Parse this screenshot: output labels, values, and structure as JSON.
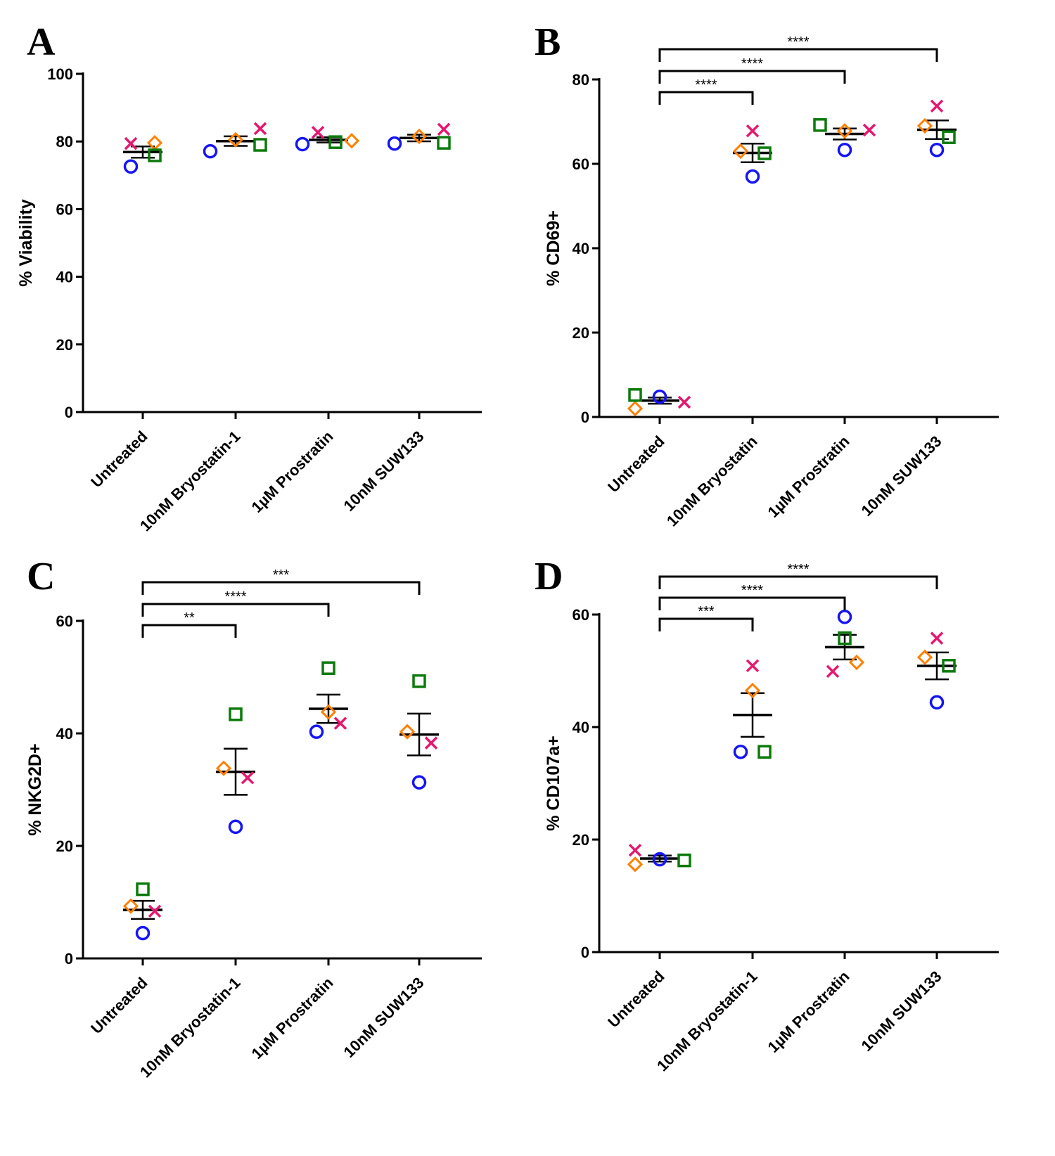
{
  "marker_colors": {
    "circle": "#1515f5",
    "x": "#e5176e",
    "diamond": "#ff8000",
    "square": "#0b7a0b"
  },
  "chart_data": [
    {
      "panel": "A",
      "type": "scatter",
      "ylabel": "% Viability",
      "ylim": [
        0,
        100
      ],
      "yticks": [
        0,
        20,
        40,
        60,
        80,
        100
      ],
      "categories": [
        "Untreated",
        "10nM Bryostatin-1",
        "1µM Prostratin",
        "10nM SUW133"
      ],
      "series": [
        {
          "marker": "circle",
          "values": [
            72.6,
            77.1,
            79.2,
            79.4
          ]
        },
        {
          "marker": "x",
          "values": [
            79.4,
            83.8,
            82.7,
            83.6
          ]
        },
        {
          "marker": "diamond",
          "values": [
            79.6,
            80.5,
            80.2,
            81.5
          ]
        },
        {
          "marker": "square",
          "values": [
            75.9,
            79.0,
            79.8,
            79.6
          ]
        }
      ],
      "summary": "mean ± SEM",
      "significance": []
    },
    {
      "panel": "B",
      "type": "scatter",
      "ylabel": "% CD69+",
      "ylim": [
        0,
        80
      ],
      "yticks": [
        0,
        20,
        40,
        60,
        80
      ],
      "categories": [
        "Untreated",
        "10nM Bryostatin",
        "1µM Prostratin",
        "10nM SUW133"
      ],
      "series": [
        {
          "marker": "circle",
          "values": [
            4.8,
            57.0,
            63.3,
            63.3
          ]
        },
        {
          "marker": "x",
          "values": [
            3.5,
            67.8,
            68.0,
            73.7
          ]
        },
        {
          "marker": "diamond",
          "values": [
            2.0,
            63.0,
            67.8,
            69.0
          ]
        },
        {
          "marker": "square",
          "values": [
            5.2,
            62.5,
            69.2,
            66.3
          ]
        }
      ],
      "summary": "mean ± SEM",
      "significance": [
        {
          "from": "Untreated",
          "to": "10nM Bryostatin",
          "stars": "****"
        },
        {
          "from": "Untreated",
          "to": "1µM Prostratin",
          "stars": "****"
        },
        {
          "from": "Untreated",
          "to": "10nM SUW133",
          "stars": "****"
        }
      ]
    },
    {
      "panel": "C",
      "type": "scatter",
      "ylabel": "% NKG2D+",
      "ylim": [
        0,
        60
      ],
      "yticks": [
        0,
        20,
        40,
        60
      ],
      "categories": [
        "Untreated",
        "10nM Bryostatin-1",
        "1µM Prostratin",
        "10nM SUW133"
      ],
      "series": [
        {
          "marker": "circle",
          "values": [
            4.5,
            23.4,
            40.3,
            31.3
          ]
        },
        {
          "marker": "x",
          "values": [
            8.4,
            32.1,
            41.8,
            38.3
          ]
        },
        {
          "marker": "diamond",
          "values": [
            9.3,
            33.8,
            43.8,
            40.3
          ]
        },
        {
          "marker": "square",
          "values": [
            12.3,
            43.4,
            51.6,
            49.3
          ]
        }
      ],
      "summary": "mean ± SEM",
      "significance": [
        {
          "from": "Untreated",
          "to": "10nM Bryostatin-1",
          "stars": "**"
        },
        {
          "from": "Untreated",
          "to": "1µM Prostratin",
          "stars": "****"
        },
        {
          "from": "Untreated",
          "to": "10nM SUW133",
          "stars": "***"
        }
      ]
    },
    {
      "panel": "D",
      "type": "scatter",
      "ylabel": "% CD107a+",
      "ylim": [
        0,
        60
      ],
      "yticks": [
        0,
        20,
        40,
        60
      ],
      "categories": [
        "Untreated",
        "10nM Bryostatin-1",
        "1µM Prostratin",
        "10nM SUW133"
      ],
      "series": [
        {
          "marker": "circle",
          "values": [
            16.5,
            35.6,
            59.6,
            44.4
          ]
        },
        {
          "marker": "x",
          "values": [
            18.1,
            50.9,
            49.9,
            55.8
          ]
        },
        {
          "marker": "diamond",
          "values": [
            15.6,
            46.5,
            51.5,
            52.4
          ]
        },
        {
          "marker": "square",
          "values": [
            16.3,
            35.6,
            55.8,
            50.9
          ]
        }
      ],
      "summary": "mean ± SEM",
      "significance": [
        {
          "from": "Untreated",
          "to": "10nM Bryostatin-1",
          "stars": "***"
        },
        {
          "from": "Untreated",
          "to": "1µM Prostratin",
          "stars": "****"
        },
        {
          "from": "Untreated",
          "to": "10nM SUW133",
          "stars": "****"
        }
      ]
    }
  ]
}
